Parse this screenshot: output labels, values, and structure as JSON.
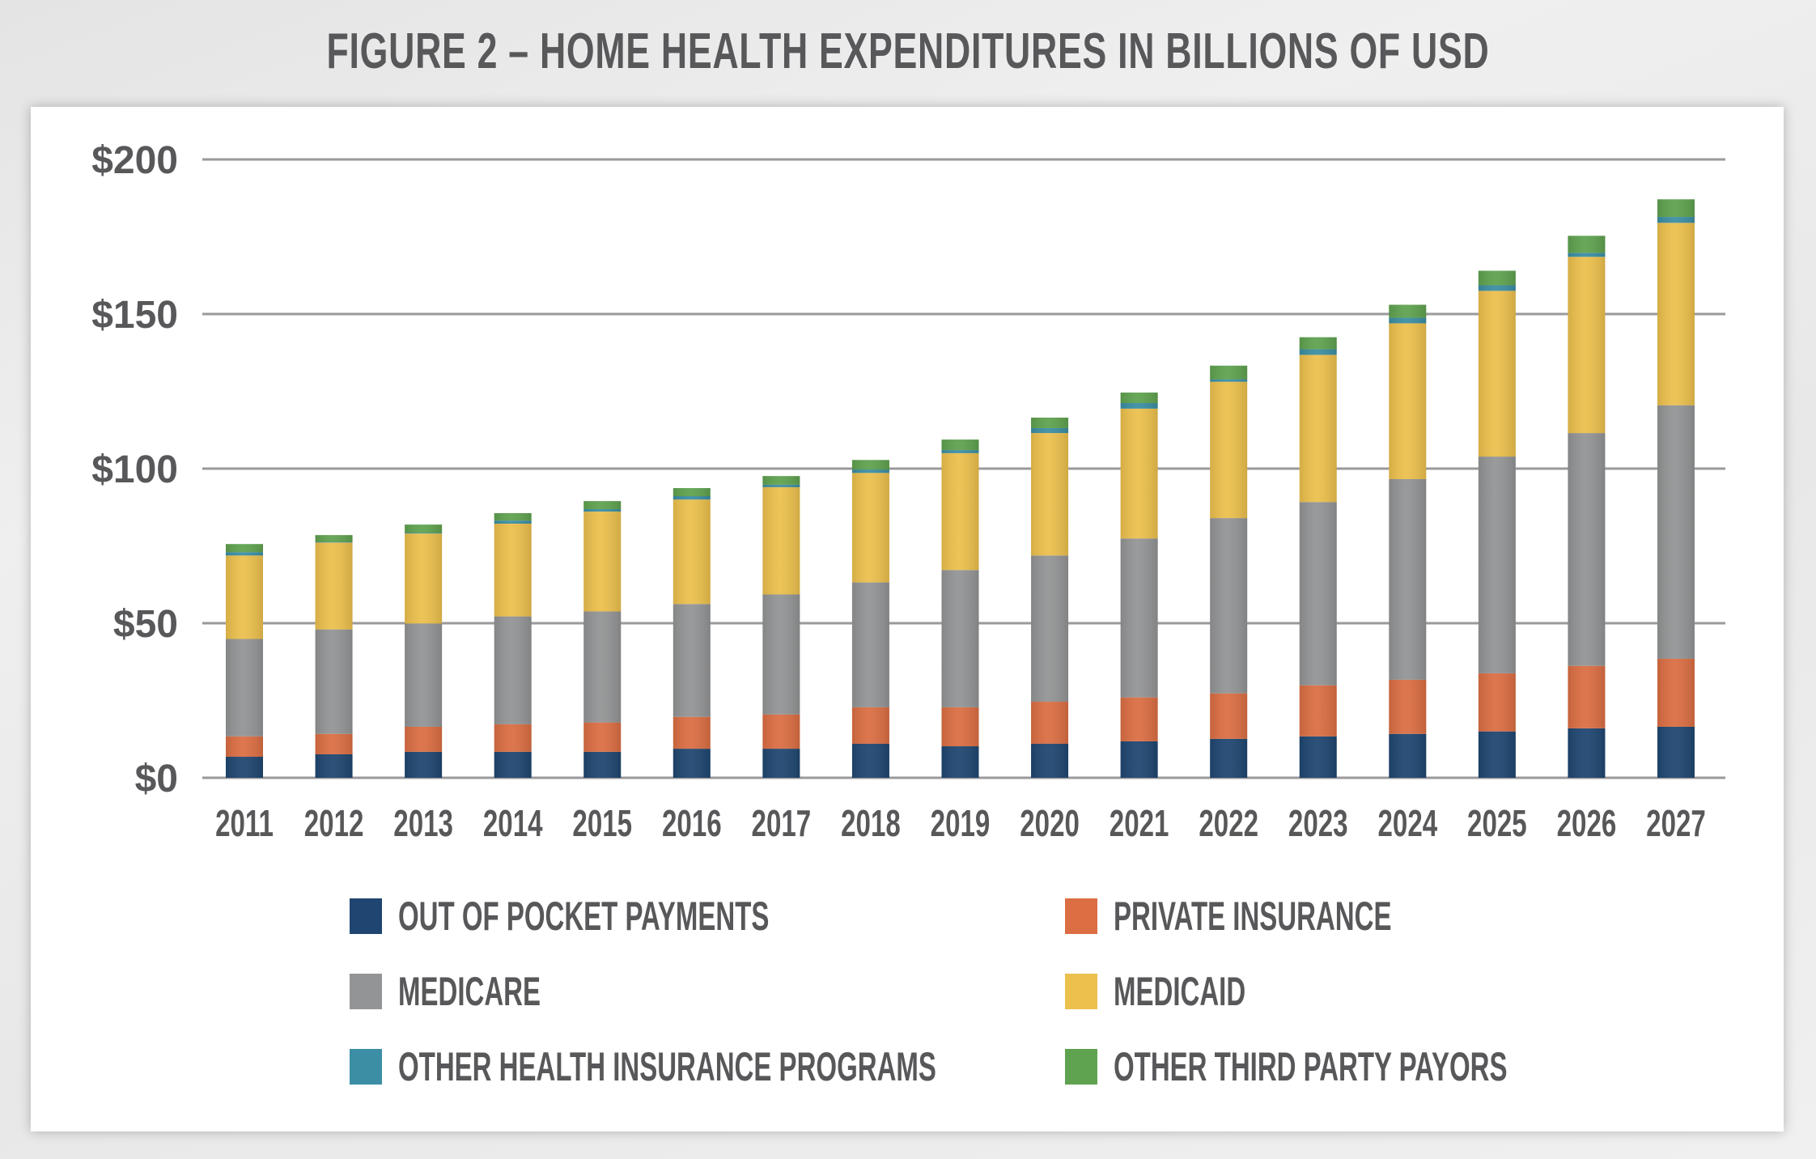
{
  "chart_data": {
    "type": "bar",
    "stacked": true,
    "title": "FIGURE 2 – HOME HEALTH EXPENDITURES IN BILLIONS OF USD",
    "xlabel": "",
    "ylabel": "",
    "ylim": [
      0,
      200
    ],
    "yticks": [
      0,
      50,
      100,
      150,
      200
    ],
    "ytick_labels": [
      "$0",
      "$50",
      "$100",
      "$150",
      "$200"
    ],
    "grid": true,
    "legend_position": "bottom",
    "categories": [
      "2011",
      "2012",
      "2013",
      "2014",
      "2015",
      "2016",
      "2017",
      "2018",
      "2019",
      "2020",
      "2021",
      "2022",
      "2023",
      "2024",
      "2025",
      "2026",
      "2027"
    ],
    "series": [
      {
        "name": "OUT OF POCKET PAYMENTS",
        "color": "#1f4670",
        "values": [
          6.8,
          7.6,
          8.4,
          8.4,
          8.4,
          9.4,
          9.4,
          11.0,
          10.2,
          11.0,
          11.8,
          12.6,
          13.4,
          14.2,
          15.0,
          16.0,
          16.5
        ]
      },
      {
        "name": "PRIVATE INSURANCE",
        "color": "#db6e43",
        "values": [
          6.6,
          6.6,
          8.1,
          8.9,
          9.5,
          10.3,
          11.1,
          11.8,
          12.6,
          13.6,
          14.2,
          14.7,
          16.5,
          17.5,
          18.8,
          20.2,
          22.0
        ]
      },
      {
        "name": "MEDICARE",
        "color": "#939495",
        "values": [
          31.5,
          33.8,
          33.4,
          34.9,
          35.9,
          36.5,
          38.8,
          40.4,
          44.4,
          47.3,
          51.4,
          56.7,
          59.3,
          64.9,
          70.1,
          75.3,
          82.0
        ]
      },
      {
        "name": "MEDICAID",
        "color": "#ecc04d",
        "values": [
          27.0,
          28.1,
          29.1,
          30.0,
          32.3,
          33.8,
          34.7,
          35.4,
          37.8,
          39.6,
          42.0,
          44.1,
          47.6,
          50.4,
          53.6,
          57.0,
          59.0
        ]
      },
      {
        "name": "OTHER HEALTH INSURANCE PROGRAMS",
        "color": "#3b8ea3",
        "values": [
          1.1,
          0.2,
          0.2,
          1.0,
          0.8,
          1.1,
          0.8,
          1.1,
          1.0,
          1.6,
          1.8,
          0.8,
          1.8,
          1.8,
          1.8,
          1.3,
          1.9
        ]
      },
      {
        "name": "OTHER THIRD PARTY PAYORS",
        "color": "#5fa24f",
        "values": [
          2.6,
          2.2,
          2.7,
          2.4,
          2.6,
          2.6,
          2.8,
          3.1,
          3.4,
          3.4,
          3.4,
          4.4,
          3.9,
          4.2,
          4.7,
          5.5,
          5.7
        ]
      }
    ],
    "legend_order": [
      0,
      1,
      2,
      3,
      4,
      5
    ]
  }
}
